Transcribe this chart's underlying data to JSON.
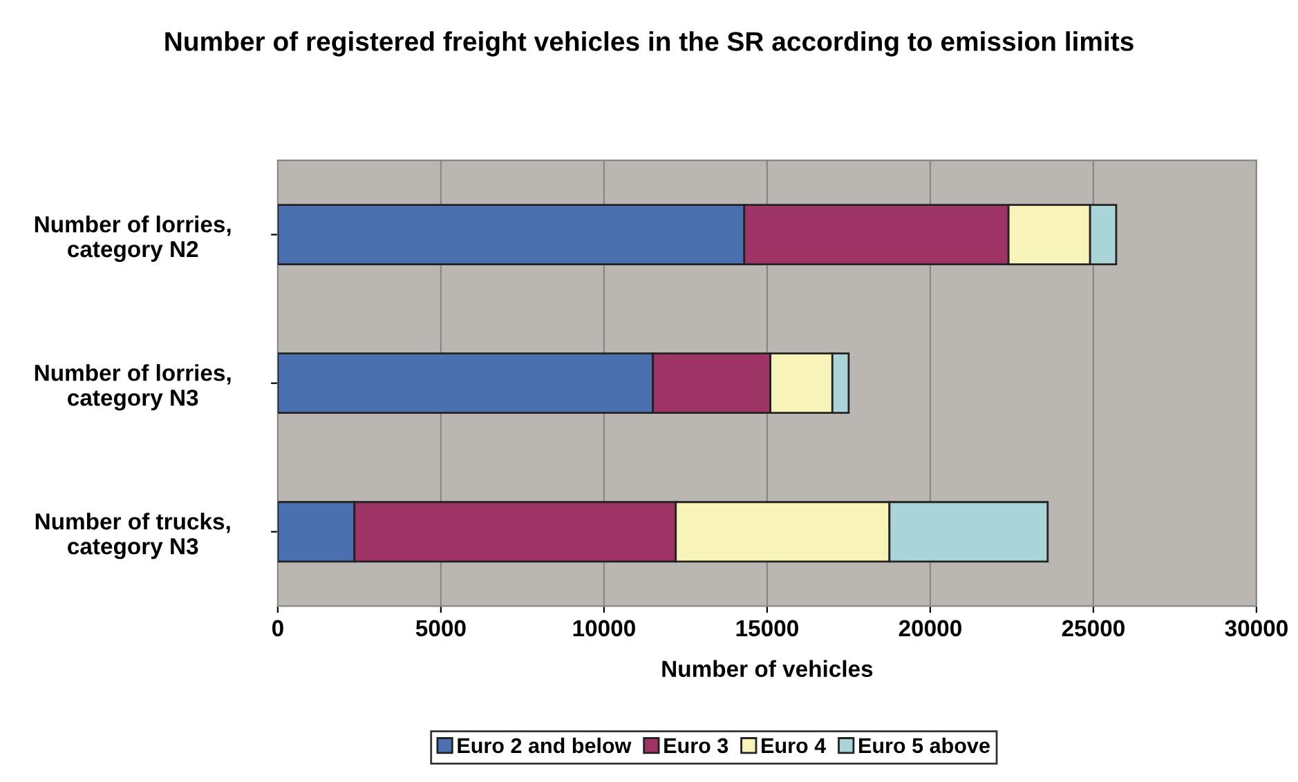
{
  "chart_data": {
    "type": "bar",
    "orientation": "horizontal",
    "stacked": true,
    "title": "Number of registered freight vehicles in the SR according to emission limits",
    "xlabel": "Number of vehicles",
    "categories": [
      "Number of lorries, category N2",
      "Number of lorries, category N3",
      "Number of trucks, category N3"
    ],
    "series": [
      {
        "name": "Euro 2 and below",
        "color": "#4a70b0",
        "values": [
          14300,
          11500,
          2350
        ]
      },
      {
        "name": "Euro 3",
        "color": "#9e3365",
        "values": [
          8100,
          3600,
          9850
        ]
      },
      {
        "name": "Euro 4",
        "color": "#f7f3b9",
        "values": [
          2500,
          1900,
          6550
        ]
      },
      {
        "name": "Euro 5 above",
        "color": "#a9d4d8",
        "values": [
          800,
          500,
          4850
        ]
      }
    ],
    "xlim": [
      0,
      30000
    ],
    "xticks": [
      0,
      5000,
      10000,
      15000,
      20000,
      25000,
      30000
    ],
    "grid": "x",
    "legend": "bottom"
  }
}
